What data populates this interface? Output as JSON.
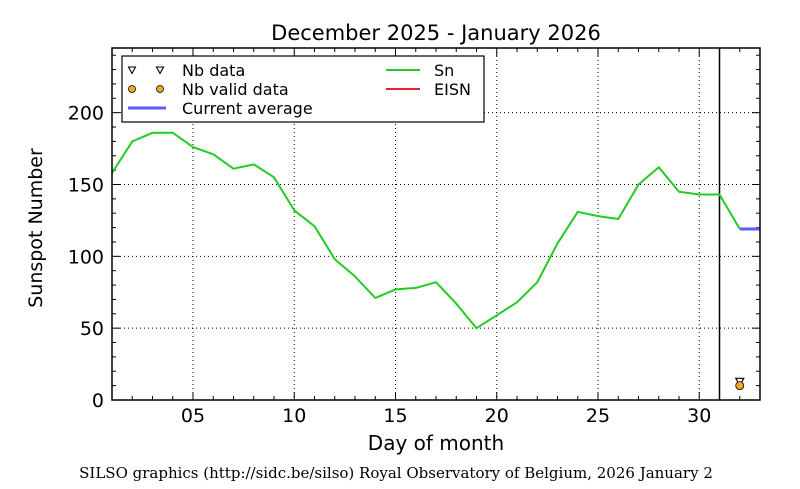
{
  "chart_data": {
    "type": "line",
    "title": "December 2025 - January 2026",
    "xlabel": "Day of month",
    "ylabel": "Sunspot Number",
    "xlim": [
      1,
      33
    ],
    "ylim": [
      0,
      245
    ],
    "xticks": [
      {
        "value": 5,
        "label": "05"
      },
      {
        "value": 10,
        "label": "10"
      },
      {
        "value": 15,
        "label": "15"
      },
      {
        "value": 20,
        "label": "20"
      },
      {
        "value": 25,
        "label": "25"
      },
      {
        "value": 30,
        "label": "30"
      }
    ],
    "yticks": [
      {
        "value": 0,
        "label": "0"
      },
      {
        "value": 50,
        "label": "50"
      },
      {
        "value": 100,
        "label": "100"
      },
      {
        "value": 150,
        "label": "150"
      },
      {
        "value": 200,
        "label": "200"
      }
    ],
    "grid": true,
    "month_divider_x": 31,
    "legend": {
      "placement": "top-left",
      "entries": [
        {
          "label": "Nb data",
          "marker": "triangle-down",
          "color": "#000000"
        },
        {
          "label": "Nb valid data",
          "marker": "circle",
          "color": "#f5a623"
        },
        {
          "label": "Current average",
          "marker": "line",
          "color": "#5b5bff"
        },
        {
          "label": "Sn",
          "marker": "line",
          "color": "#22cc22"
        },
        {
          "label": "EISN",
          "marker": "line",
          "color": "#ee2222"
        }
      ]
    },
    "series": [
      {
        "name": "Sn",
        "color": "#22cc22",
        "x": [
          1,
          2,
          3,
          4,
          5,
          6,
          7,
          8,
          9,
          10,
          11,
          12,
          13,
          14,
          15,
          16,
          17,
          18,
          19,
          20,
          21,
          22,
          23,
          24,
          25,
          26,
          27,
          28,
          29,
          30,
          31,
          32
        ],
        "y": [
          158,
          180,
          186,
          186,
          176,
          171,
          161,
          164,
          155,
          132,
          121,
          98,
          86,
          71,
          77,
          78,
          82,
          67,
          50,
          59,
          68,
          82,
          109,
          131,
          128,
          126,
          150,
          162,
          145,
          143,
          143,
          119
        ]
      },
      {
        "name": "Current average",
        "color": "#5b5bff",
        "x": [
          32,
          33
        ],
        "y": [
          119,
          119
        ]
      }
    ],
    "nb_data": [
      {
        "x": 32,
        "y": 13
      }
    ],
    "nb_valid_data": [
      {
        "x": 32,
        "y": 10
      }
    ]
  },
  "credit": "SILSO graphics (http://sidc.be/silso) Royal Observatory of Belgium, 2026 January 2"
}
